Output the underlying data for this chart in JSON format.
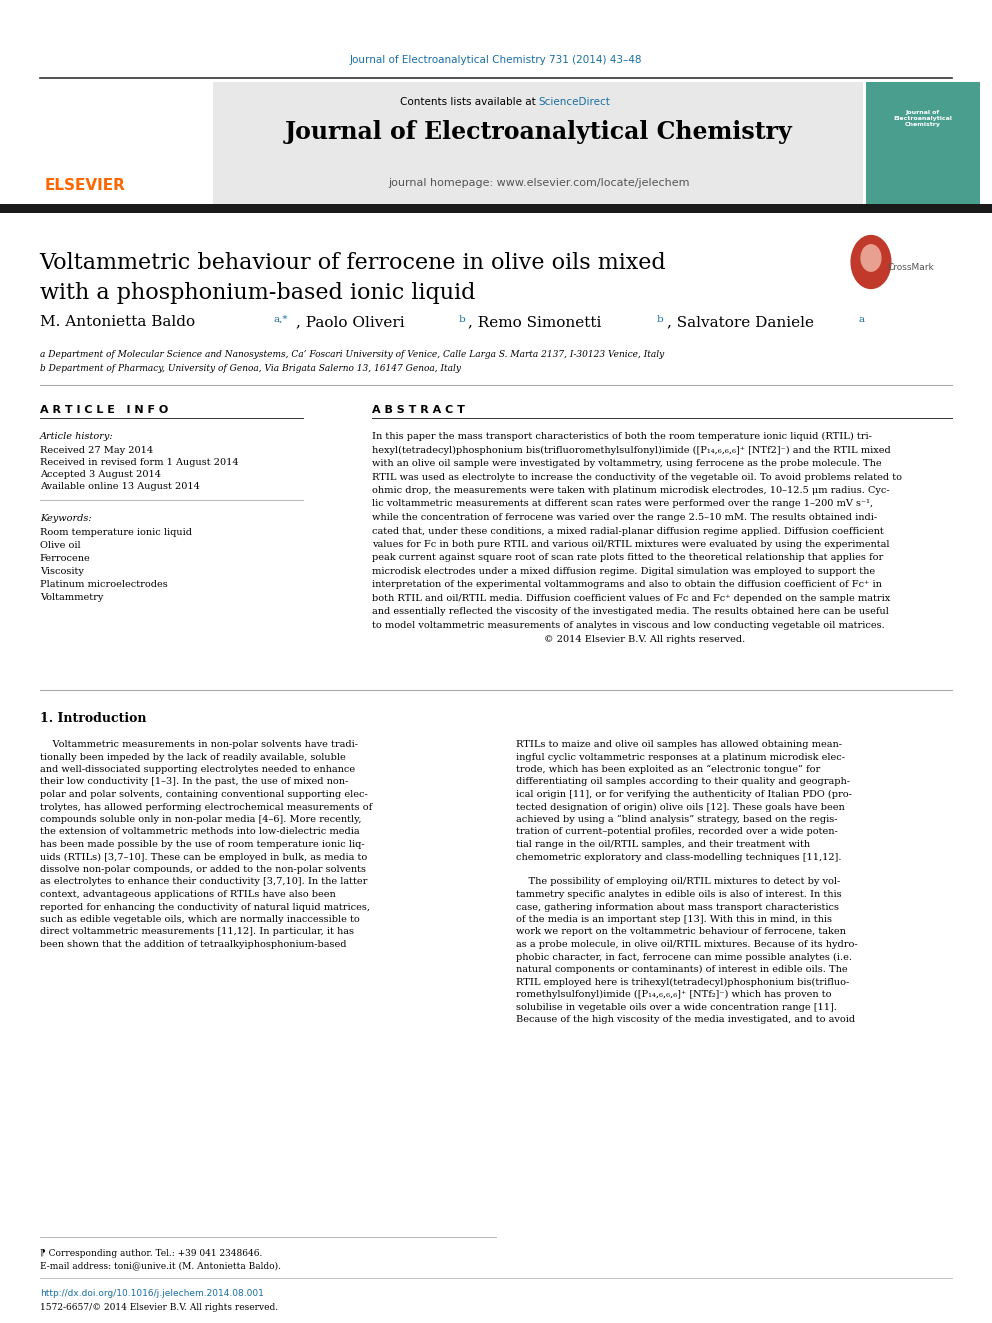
{
  "page_width": 9.92,
  "page_height": 13.23,
  "bg_color": "#ffffff",
  "journal_ref": "Journal of Electroanalytical Chemistry 731 (2014) 43–48",
  "journal_ref_color": "#1a6fa3",
  "contents_text": "Contents lists available at ",
  "sciencedirect_text": "ScienceDirect",
  "sciencedirect_color": "#1a6fa3",
  "journal_title": "Journal of Electroanalytical Chemistry",
  "homepage_text": "journal homepage: www.elsevier.com/locate/jelechem",
  "elsevier_color": "#ff6600",
  "elsevier_text": "ELSEVIER",
  "article_title_line1": "Voltammetric behaviour of ferrocene in olive oils mixed",
  "article_title_line2": "with a phosphonium-based ionic liquid",
  "affil_a": "a Department of Molecular Science and Nanosystems, Ca’ Foscari University of Venice, Calle Larga S. Marta 2137, I-30123 Venice, Italy",
  "affil_b": "b Department of Pharmacy, University of Genoa, Via Brigata Salerno 13, 16147 Genoa, Italy",
  "article_info_header": "A R T I C L E   I N F O",
  "abstract_header": "A B S T R A C T",
  "article_history_header": "Article history:",
  "received_text": "Received 27 May 2014",
  "received_revised": "Received in revised form 1 August 2014",
  "accepted_text": "Accepted 3 August 2014",
  "available_text": "Available online 13 August 2014",
  "keywords_header": "Keywords:",
  "keywords": [
    "Room temperature ionic liquid",
    "Olive oil",
    "Ferrocene",
    "Viscosity",
    "Platinum microelectrodes",
    "Voltammetry"
  ],
  "copyright_text": "© 2014 Elsevier B.V. All rights reserved.",
  "intro_header": "1. Introduction",
  "footer_note": "⁋ Corresponding author. Tel.: +39 041 2348646.",
  "footer_email": "E-mail address: toni@unive.it (M. Antonietta Baldo).",
  "footer_doi": "http://dx.doi.org/10.1016/j.jelechem.2014.08.001",
  "footer_issn": "1572-6657/© 2014 Elsevier B.V. All rights reserved.",
  "header_bar_color": "#1a1a1a",
  "section_line_color": "#333333",
  "gray_header_bg": "#e8e8e8",
  "cover_bg": "#4a9e8e",
  "abstract_lines": [
    "In this paper the mass transport characteristics of both the room temperature ionic liquid (RTIL) tri-",
    "hexyl(tetradecyl)phosphonium bis(trifluoromethylsulfonyl)imide ([P₁₄,₆,₆,₆]⁺ [NTf2]⁻) and the RTIL mixed",
    "with an olive oil sample were investigated by voltammetry, using ferrocene as the probe molecule. The",
    "RTIL was used as electrolyte to increase the conductivity of the vegetable oil. To avoid problems related to",
    "ohmic drop, the measurements were taken with platinum microdisk electrodes, 10–12.5 μm radius. Cyc-",
    "lic voltammetric measurements at different scan rates were performed over the range 1–200 mV s⁻¹,",
    "while the concentration of ferrocene was varied over the range 2.5–10 mM. The results obtained indi-",
    "cated that, under these conditions, a mixed radial-planar diffusion regime applied. Diffusion coefficient",
    "values for Fc in both pure RTIL and various oil/RTIL mixtures were evaluated by using the experimental",
    "peak current against square root of scan rate plots fitted to the theoretical relationship that applies for",
    "microdisk electrodes under a mixed diffusion regime. Digital simulation was employed to support the",
    "interpretation of the experimental voltammograms and also to obtain the diffusion coefficient of Fc⁺ in",
    "both RTIL and oil/RTIL media. Diffusion coefficient values of Fc and Fc⁺ depended on the sample matrix",
    "and essentially reflected the viscosity of the investigated media. The results obtained here can be useful",
    "to model voltammetric measurements of analytes in viscous and low conducting vegetable oil matrices.",
    "                                                       © 2014 Elsevier B.V. All rights reserved."
  ],
  "intro_left_lines": [
    "    Voltammetric measurements in non-polar solvents have tradi-",
    "tionally been impeded by the lack of readily available, soluble",
    "and well-dissociated supporting electrolytes needed to enhance",
    "their low conductivity [1–3]. In the past, the use of mixed non-",
    "polar and polar solvents, containing conventional supporting elec-",
    "trolytes, has allowed performing electrochemical measurements of",
    "compounds soluble only in non-polar media [4–6]. More recently,",
    "the extension of voltammetric methods into low-dielectric media",
    "has been made possible by the use of room temperature ionic liq-",
    "uids (RTILs) [3,7–10]. These can be employed in bulk, as media to",
    "dissolve non-polar compounds, or added to the non-polar solvents",
    "as electrolytes to enhance their conductivity [3,7,10]. In the latter",
    "context, advantageous applications of RTILs have also been",
    "reported for enhancing the conductivity of natural liquid matrices,",
    "such as edible vegetable oils, which are normally inaccessible to",
    "direct voltammetric measurements [11,12]. In particular, it has",
    "been shown that the addition of tetraalkyiphosphonium-based"
  ],
  "intro_right_lines": [
    "RTILs to maize and olive oil samples has allowed obtaining mean-",
    "ingful cyclic voltammetric responses at a platinum microdisk elec-",
    "trode, which has been exploited as an “electronic tongue” for",
    "differentiating oil samples according to their quality and geograph-",
    "ical origin [11], or for verifying the authenticity of Italian PDO (pro-",
    "tected designation of origin) olive oils [12]. These goals have been",
    "achieved by using a “blind analysis” strategy, based on the regis-",
    "tration of current–potential profiles, recorded over a wide poten-",
    "tial range in the oil/RTIL samples, and their treatment with",
    "chemometric exploratory and class-modelling techniques [11,12].",
    "",
    "    The possibility of employing oil/RTIL mixtures to detect by vol-",
    "tammetry specific analytes in edible oils is also of interest. In this",
    "case, gathering information about mass transport characteristics",
    "of the media is an important step [13]. With this in mind, in this",
    "work we report on the voltammetric behaviour of ferrocene, taken",
    "as a probe molecule, in olive oil/RTIL mixtures. Because of its hydro-",
    "phobic character, in fact, ferrocene can mime possible analytes (i.e.",
    "natural components or contaminants) of interest in edible oils. The",
    "RTIL employed here is trihexyl(tetradecyl)phosphonium bis(trifluo-",
    "romethylsulfonyl)imide ([P₁₄,₆,₆,₆]⁺ [NTf₂]⁻) which has proven to",
    "solubilise in vegetable oils over a wide concentration range [11].",
    "Because of the high viscosity of the media investigated, and to avoid"
  ]
}
